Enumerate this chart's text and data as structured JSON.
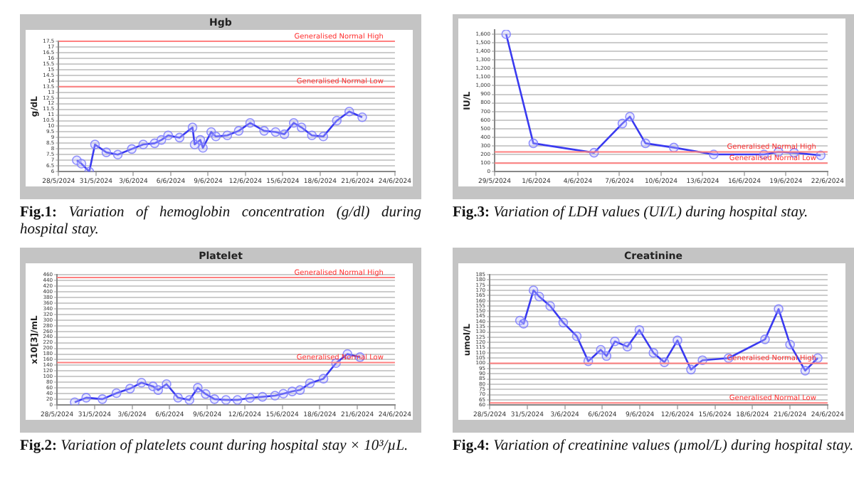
{
  "chart_data": [
    {
      "type": "line",
      "title": "Hgb",
      "ylabel": "g/dL",
      "grid": "y",
      "legend": false,
      "marker": "circle",
      "line_style": "solid",
      "annotations": [
        "Fig.1: Variation of hemoglobin concentration (g/dl) during hospital stay."
      ],
      "xlim": [
        "2024-05-28",
        "2024-06-24"
      ],
      "xticks": [
        {
          "value": "2024-05-28",
          "label": "28/5/2024"
        },
        {
          "value": "2024-05-31",
          "label": "31/5/2024"
        },
        {
          "value": "2024-06-03",
          "label": "3/6/2024"
        },
        {
          "value": "2024-06-06",
          "label": "6/6/2024"
        },
        {
          "value": "2024-06-09",
          "label": "9/6/2024"
        },
        {
          "value": "2024-06-12",
          "label": "12/6/2024"
        },
        {
          "value": "2024-06-15",
          "label": "15/6/2024"
        },
        {
          "value": "2024-06-18",
          "label": "18/6/2024"
        },
        {
          "value": "2024-06-21",
          "label": "21/6/2024"
        },
        {
          "value": "2024-06-24",
          "label": "24/6/2024"
        }
      ],
      "ylim": [
        6,
        17.5
      ],
      "yticks": [
        6,
        6.5,
        7,
        7.5,
        8,
        8.5,
        9,
        9.5,
        10,
        10.5,
        11,
        11.5,
        12,
        12.5,
        13,
        13.5,
        14,
        14.5,
        15,
        15.5,
        16,
        16.5,
        17,
        17.5
      ],
      "ref_lines": [
        {
          "axis": "y",
          "value": 17.5,
          "label": "Generalised Normal High",
          "color": "#ff8080"
        },
        {
          "axis": "y",
          "value": 13.5,
          "label": "Generalised Normal Low",
          "color": "#ff8080"
        }
      ],
      "series": [
        {
          "color": "#3a3af0",
          "x": [
            "2024-05-29T11:00",
            "2024-05-29T20:00",
            "2024-05-30T11:00",
            "2024-05-30T22:00",
            "2024-05-31T20:00",
            "2024-06-01T18:00",
            "2024-06-02T21:00",
            "2024-06-03T19:00",
            "2024-06-04T17:00",
            "2024-06-05T06:00",
            "2024-06-05T19:00",
            "2024-06-06T17:00",
            "2024-06-07T18:00",
            "2024-06-07T22:00",
            "2024-06-08T09:00",
            "2024-06-08T14:00",
            "2024-06-09T06:00",
            "2024-06-09T15:00",
            "2024-06-10T13:00",
            "2024-06-11T11:00",
            "2024-06-12T09:00",
            "2024-06-13T12:00",
            "2024-06-14T10:00",
            "2024-06-15T03:00",
            "2024-06-15T21:00",
            "2024-06-16T12:00",
            "2024-06-17T08:00",
            "2024-06-18T06:00",
            "2024-06-19T08:00",
            "2024-06-20T08:00",
            "2024-06-21T09:00"
          ],
          "values": [
            7.0,
            6.7,
            6.0,
            8.4,
            7.7,
            7.5,
            8.0,
            8.4,
            8.5,
            8.8,
            9.2,
            9.0,
            9.9,
            8.4,
            8.8,
            8.1,
            9.5,
            9.1,
            9.2,
            9.6,
            10.3,
            9.6,
            9.5,
            9.3,
            10.3,
            9.9,
            9.2,
            9.1,
            10.5,
            11.3,
            10.8
          ]
        }
      ]
    },
    {
      "type": "line",
      "ylabel": "IU/L",
      "grid": "y",
      "legend": false,
      "marker": "circle",
      "line_style": "solid",
      "annotations": [
        "Fig.3: Variation of LDH values (UI/L) during hospital stay."
      ],
      "xlim": [
        "2024-05-29",
        "2024-06-22"
      ],
      "xticks": [
        {
          "value": "2024-05-29",
          "label": "29/5/2024"
        },
        {
          "value": "2024-06-01",
          "label": "1/6/2024"
        },
        {
          "value": "2024-06-04",
          "label": "4/6/2024"
        },
        {
          "value": "2024-06-07",
          "label": "7/6/2024"
        },
        {
          "value": "2024-06-10",
          "label": "10/6/2024"
        },
        {
          "value": "2024-06-13",
          "label": "13/6/2024"
        },
        {
          "value": "2024-06-16",
          "label": "16/6/2024"
        },
        {
          "value": "2024-06-19",
          "label": "19/6/2024"
        },
        {
          "value": "2024-06-22",
          "label": "22/6/2024"
        }
      ],
      "ylim": [
        0,
        1650
      ],
      "yticks": [
        0,
        100,
        200,
        300,
        400,
        500,
        600,
        700,
        800,
        900,
        {
          "value": 1000,
          "label": "1,000"
        },
        {
          "value": 1100,
          "label": "1,100"
        },
        {
          "value": 1200,
          "label": "1,200"
        },
        {
          "value": 1300,
          "label": "1,300"
        },
        {
          "value": 1400,
          "label": "1,400"
        },
        {
          "value": 1500,
          "label": "1,500"
        },
        {
          "value": 1600,
          "label": "1,600"
        }
      ],
      "ref_lines": [
        {
          "axis": "y",
          "value": 230,
          "label": "Generalised Normal High",
          "color": "#ff8080"
        },
        {
          "axis": "y",
          "value": 100,
          "label": "Generalised Normal Low",
          "color": "#ff8080"
        }
      ],
      "series": [
        {
          "color": "#3a3af0",
          "x": [
            "2024-05-29T20:00",
            "2024-05-31T19:00",
            "2024-06-05T04:00",
            "2024-06-07T05:00",
            "2024-06-07T18:00",
            "2024-06-08T21:00",
            "2024-06-10T22:00",
            "2024-06-13T19:00",
            "2024-06-17T10:00",
            "2024-06-18T11:00",
            "2024-06-19T14:00",
            "2024-06-21T12:00"
          ],
          "values": [
            1600,
            330,
            220,
            560,
            640,
            330,
            280,
            200,
            200,
            230,
            220,
            190
          ]
        }
      ]
    },
    {
      "type": "line",
      "title": "Platelet",
      "ylabel": "x10[3]/mL",
      "grid": "y",
      "legend": false,
      "marker": "circle",
      "line_style": "solid",
      "annotations": [
        "Fig.2: Variation of platelets count during hospital stay × 10³/µL."
      ],
      "xlim": [
        "2024-05-28",
        "2024-06-24"
      ],
      "xticks": [
        {
          "value": "2024-05-28",
          "label": "28/5/2024"
        },
        {
          "value": "2024-05-31",
          "label": "31/5/2024"
        },
        {
          "value": "2024-06-03",
          "label": "3/6/2024"
        },
        {
          "value": "2024-06-06",
          "label": "6/6/2024"
        },
        {
          "value": "2024-06-09",
          "label": "9/6/2024"
        },
        {
          "value": "2024-06-12",
          "label": "12/6/2024"
        },
        {
          "value": "2024-06-15",
          "label": "15/6/2024"
        },
        {
          "value": "2024-06-18",
          "label": "18/6/2024"
        },
        {
          "value": "2024-06-21",
          "label": "21/6/2024"
        },
        {
          "value": "2024-06-24",
          "label": "24/6/2024"
        }
      ],
      "ylim": [
        0,
        460
      ],
      "yticks": [
        0,
        20,
        40,
        60,
        80,
        100,
        120,
        140,
        160,
        180,
        200,
        220,
        240,
        260,
        280,
        300,
        320,
        340,
        360,
        380,
        400,
        420,
        440,
        460
      ],
      "ref_lines": [
        {
          "axis": "y",
          "value": 450,
          "label": "Generalised Normal High",
          "color": "#ff8080"
        },
        {
          "axis": "y",
          "value": 150,
          "label": "Generalised Normal Low",
          "color": "#ff8080"
        }
      ],
      "series": [
        {
          "color": "#3a3af0",
          "x": [
            "2024-05-29T10:00",
            "2024-05-30T08:00",
            "2024-05-31T15:00",
            "2024-06-01T18:00",
            "2024-06-02T20:00",
            "2024-06-03T18:00",
            "2024-06-04T16:00",
            "2024-06-05T02:00",
            "2024-06-05T18:00",
            "2024-06-06T16:00",
            "2024-06-07T14:00",
            "2024-06-08T06:00",
            "2024-06-08T21:00",
            "2024-06-09T14:00",
            "2024-06-10T12:00",
            "2024-06-11T10:00",
            "2024-06-12T10:00",
            "2024-06-13T10:00",
            "2024-06-14T10:00",
            "2024-06-15T02:00",
            "2024-06-15T19:00",
            "2024-06-16T10:00",
            "2024-06-17T05:00",
            "2024-06-18T07:00",
            "2024-06-19T07:00",
            "2024-06-20T05:00",
            "2024-06-21T05:00"
          ],
          "values": [
            10,
            26,
            21,
            42,
            58,
            79,
            66,
            53,
            74,
            26,
            18,
            61,
            39,
            21,
            18,
            18,
            25,
            29,
            33,
            40,
            48,
            53,
            77,
            93,
            148,
            180,
            169
          ]
        }
      ]
    },
    {
      "type": "line",
      "title": "Creatinine",
      "ylabel": "umol/L",
      "grid": "y",
      "legend": false,
      "marker": "circle",
      "line_style": "solid",
      "annotations": [
        "Fig.4: Variation of creatinine values (µmol/L) during hospital stay."
      ],
      "xlim": [
        "2024-05-28",
        "2024-06-24"
      ],
      "xticks": [
        {
          "value": "2024-05-28",
          "label": "28/5/2024"
        },
        {
          "value": "2024-05-31",
          "label": "31/5/2024"
        },
        {
          "value": "2024-06-03",
          "label": "3/6/2024"
        },
        {
          "value": "2024-06-06",
          "label": "6/6/2024"
        },
        {
          "value": "2024-06-09",
          "label": "9/6/2024"
        },
        {
          "value": "2024-06-12",
          "label": "12/6/2024"
        },
        {
          "value": "2024-06-15",
          "label": "15/6/2024"
        },
        {
          "value": "2024-06-18",
          "label": "18/6/2024"
        },
        {
          "value": "2024-06-21",
          "label": "21/6/2024"
        },
        {
          "value": "2024-06-24",
          "label": "24/6/2024"
        }
      ],
      "ylim": [
        60,
        185
      ],
      "yticks": [
        60,
        65,
        70,
        75,
        80,
        85,
        90,
        95,
        100,
        105,
        110,
        115,
        120,
        125,
        130,
        135,
        140,
        145,
        150,
        155,
        160,
        165,
        170,
        175,
        180,
        185
      ],
      "ref_lines": [
        {
          "axis": "y",
          "value": 100,
          "label": "Generalised Normal High",
          "color": "#ff8080"
        },
        {
          "axis": "y",
          "value": 62,
          "label": "Generalised Normal Low",
          "color": "#ff8080"
        }
      ],
      "series": [
        {
          "color": "#3a3af0",
          "x": [
            "2024-05-30T10:00",
            "2024-05-30T17:00",
            "2024-05-31T12:00",
            "2024-05-31T23:00",
            "2024-06-01T20:00",
            "2024-06-02T21:00",
            "2024-06-03T23:00",
            "2024-06-04T21:00",
            "2024-06-05T21:00",
            "2024-06-06T08:00",
            "2024-06-07T00:00",
            "2024-06-08T00:00",
            "2024-06-08T23:00",
            "2024-06-10T02:00",
            "2024-06-10T23:00",
            "2024-06-12T00:00",
            "2024-06-13T02:00",
            "2024-06-14T00:00",
            "2024-06-16T02:00",
            "2024-06-19T00:00",
            "2024-06-20T02:00",
            "2024-06-21T00:00",
            "2024-06-22T05:00",
            "2024-06-23T05:00"
          ],
          "values": [
            141,
            138,
            170,
            164,
            155,
            139,
            126,
            102,
            113,
            107,
            121,
            116,
            132,
            110,
            101,
            122,
            94,
            103,
            105,
            123,
            152,
            118,
            93,
            105
          ]
        }
      ]
    }
  ]
}
